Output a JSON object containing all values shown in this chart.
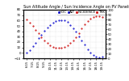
{
  "title": "Sun Altitude Angle / Sun Incidence Angle on PV Panels",
  "x_times": [
    "6:15",
    "6:45",
    "7:15",
    "7:45",
    "8:15",
    "8:45",
    "9:15",
    "9:45",
    "10:15",
    "10:45",
    "11:15",
    "11:45",
    "12:15",
    "12:45",
    "13:15",
    "13:45",
    "14:15",
    "14:45",
    "15:15",
    "15:45",
    "16:15",
    "16:45",
    "17:15",
    "17:45",
    "18:15",
    "18:45",
    "19:15"
  ],
  "altitude_angles": [
    1,
    5,
    12,
    19,
    27,
    34,
    41,
    47,
    52,
    56,
    59,
    61,
    61,
    60,
    57,
    52,
    46,
    39,
    31,
    23,
    15,
    7,
    1,
    -4,
    -7,
    -8,
    -7
  ],
  "incidence_angles": [
    80,
    74,
    67,
    59,
    51,
    44,
    37,
    31,
    27,
    24,
    22,
    21,
    21,
    23,
    26,
    31,
    37,
    44,
    52,
    61,
    70,
    77,
    82,
    85,
    86,
    86,
    85
  ],
  "altitude_color": "#0000cc",
  "incidence_color": "#cc0000",
  "bg_color": "#ffffff",
  "grid_color": "#aaaaaa",
  "ylim_left": [
    -10,
    80
  ],
  "ylim_right": [
    0,
    100
  ],
  "title_fontsize": 3.5,
  "tick_fontsize": 2.8,
  "legend_fontsize": 3.0,
  "dot_size": 1.0
}
